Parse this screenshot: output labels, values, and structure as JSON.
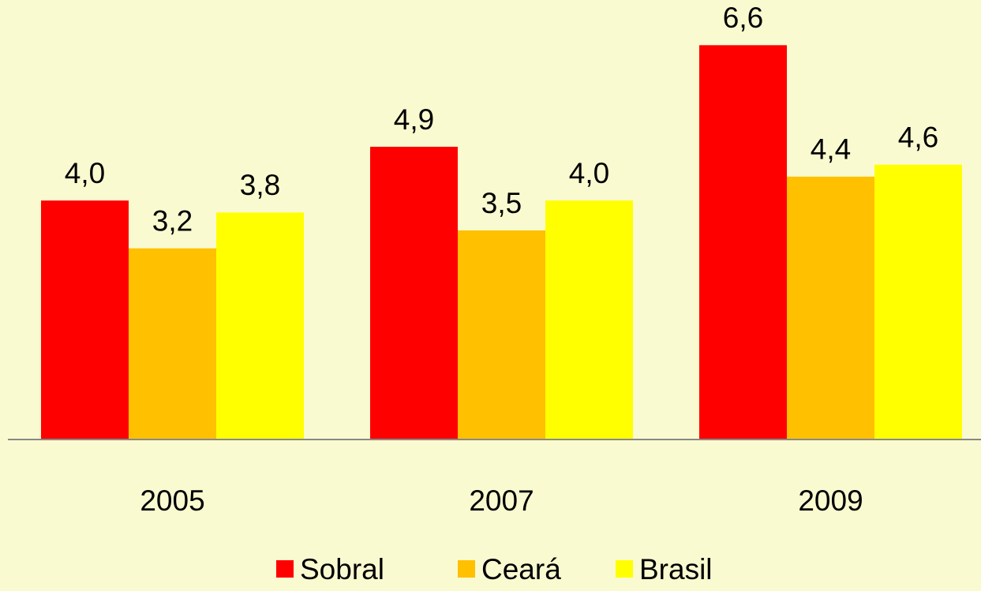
{
  "chart_data": {
    "type": "bar",
    "categories": [
      "2005",
      "2007",
      "2009"
    ],
    "series": [
      {
        "name": "Sobral",
        "color": "#ff0000",
        "values": [
          4.0,
          4.9,
          6.6
        ],
        "value_labels": [
          "4,0",
          "4,9",
          "6,6"
        ]
      },
      {
        "name": "Ceará",
        "color": "#ffc000",
        "values": [
          3.2,
          3.5,
          4.4
        ],
        "value_labels": [
          "3,2",
          "3,5",
          "4,4"
        ]
      },
      {
        "name": "Brasil",
        "color": "#ffff00",
        "values": [
          3.8,
          4.0,
          4.6
        ],
        "value_labels": [
          "3,8",
          "4,0",
          "4,6"
        ]
      }
    ],
    "ylim": [
      0,
      7
    ],
    "legend": "bottom"
  }
}
